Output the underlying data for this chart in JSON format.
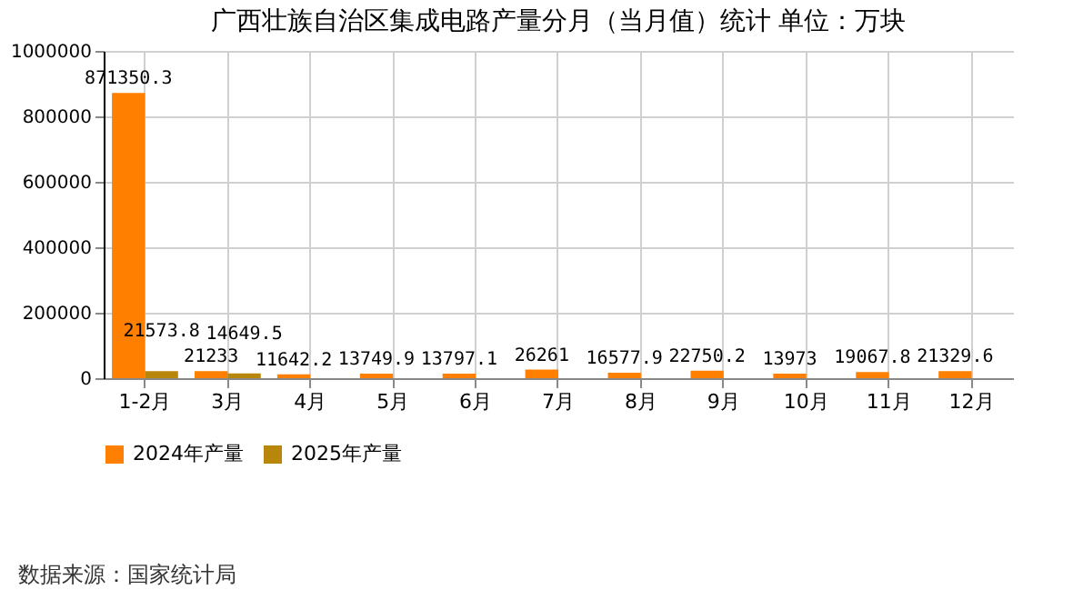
{
  "chart_data": {
    "type": "bar",
    "title": "广西壮族自治区集成电路产量分月（当月值）统计 单位：万块",
    "categories": [
      "1-2月",
      "3月",
      "4月",
      "5月",
      "6月",
      "7月",
      "8月",
      "9月",
      "10月",
      "11月",
      "12月"
    ],
    "series": [
      {
        "name": "2024年产量",
        "color": "#ff8000",
        "values": [
          871350.3,
          21233,
          11642.2,
          13749.9,
          13797.1,
          26261,
          16577.9,
          22750.2,
          13973,
          19067.8,
          21329.6
        ]
      },
      {
        "name": "2025年产量",
        "color": "#b8860b",
        "values": [
          21573.8,
          14649.5,
          null,
          null,
          null,
          null,
          null,
          null,
          null,
          null,
          null
        ]
      }
    ],
    "ylim": [
      0,
      1000000
    ],
    "yticks": [
      0,
      200000,
      400000,
      600000,
      800000,
      1000000
    ],
    "grid": true,
    "legend": "bottom",
    "data_labels": true,
    "annotations": [
      "数据来源：国家统计局"
    ]
  }
}
